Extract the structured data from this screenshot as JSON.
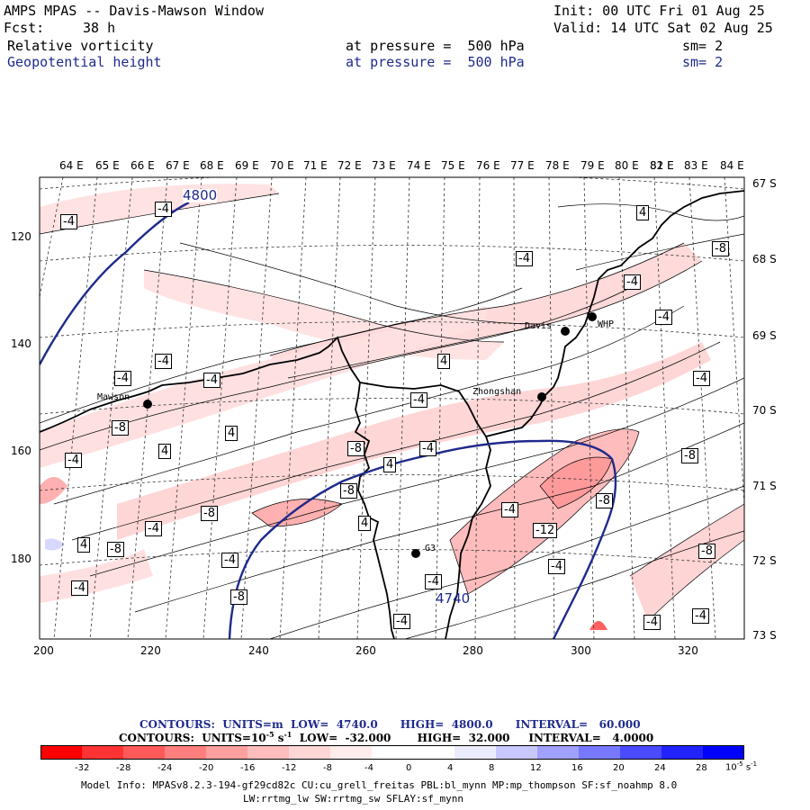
{
  "header": {
    "title": "AMPS MPAS -- Davis-Mawson Window",
    "init": "Init: 00 UTC Fri 01 Aug 25",
    "fcst_label": "Fcst:",
    "fcst_value": "38 h",
    "valid": "Valid: 14 UTC Sat 02 Aug 25",
    "field1_name": "Relative vorticity",
    "field1_level": "at pressure =  500 hPa",
    "field1_sm": "sm= 2",
    "field2_name": "Geopotential height",
    "field2_level": "at pressure =  500 hPa",
    "field2_sm": "sm= 2",
    "field2_color": "#1f2a8c"
  },
  "map": {
    "lon_labels": [
      "64 E",
      "65 E",
      "66 E",
      "67 E",
      "68 E",
      "69 E",
      "70 E",
      "71 E",
      "72 E",
      "73 E",
      "74 E",
      "75 E",
      "76 E",
      "77 E",
      "78 E",
      "79 E",
      "80 E",
      "81 E",
      "82 E",
      "83 E",
      "84 E"
    ],
    "lat_labels": [
      "67 S",
      "68 S",
      "69 S",
      "70 S",
      "71 S",
      "72 S",
      "73 S"
    ],
    "x_ticks": [
      "200",
      "220",
      "240",
      "260",
      "280",
      "300",
      "320"
    ],
    "y_ticks": [
      "120",
      "140",
      "160",
      "180"
    ],
    "stations": [
      {
        "name": "Davis"
      },
      {
        "name": "WHP"
      },
      {
        "name": "Mawson"
      },
      {
        "name": "Zhongshan"
      },
      {
        "name": "G3"
      }
    ],
    "height_labels": [
      "4800",
      "4740"
    ],
    "vort_labels": [
      "-4",
      "-4",
      "4",
      "-4",
      "-8",
      "-4",
      "-4",
      "-4",
      "-4",
      "4",
      "-4",
      "-4",
      "-8",
      "4",
      "4",
      "-4",
      "-8",
      "-4",
      "-4",
      "4",
      "-8",
      "-8",
      "4",
      "-8",
      "-4",
      "-4",
      "4",
      "-8",
      "-12",
      "-8",
      "-4",
      "-8",
      "-4",
      "-4",
      "-4",
      "-8",
      "-4",
      "-4",
      "-4",
      "-4",
      "4",
      "-8",
      "-8",
      "-4",
      "-4"
    ]
  },
  "legend": {
    "line1": "CONTOURS:  UNITS=m  LOW=  4740.0      HIGH=  4800.0      INTERVAL=   60.000",
    "line2": "CONTOURS:  UNITS=10",
    "line2_exp": "-5",
    "line2_rest": " s",
    "line2_exp2": "-1",
    "line2_tail": "  LOW=  -32.000       HIGH=  32.000     INTERVAL=   4.0000",
    "colors": [
      "#ff0000",
      "#ff3333",
      "#ff5a5a",
      "#ff7f7f",
      "#ffa0a0",
      "#ffbdbd",
      "#ffd6d6",
      "#ffecec",
      "#ffffff",
      "#ffffff",
      "#ececff",
      "#c8c8ff",
      "#a0a0ff",
      "#7878ff",
      "#4a4aff",
      "#2222ff",
      "#0000ff"
    ],
    "ticks": [
      "-32",
      "-28",
      "-24",
      "-20",
      "-16",
      "-12",
      "-8",
      "-4",
      "0",
      "4",
      "8",
      "12",
      "16",
      "20",
      "24",
      "28",
      "32"
    ],
    "unit": "10",
    "unit_exp": "-5",
    "unit_rest": " s",
    "unit_exp2": "-1"
  },
  "model_info": {
    "line1": "Model Info: MPASv8.2.3-194-gf29cd82c CU:cu_grell_freitas PBL:bl_mynn MP:mp_thompson SF:sf_noahmp 8.0",
    "line2": "LW:rrtmg_lw SW:rrtmg_sw SFLAY:sf_mynn"
  }
}
